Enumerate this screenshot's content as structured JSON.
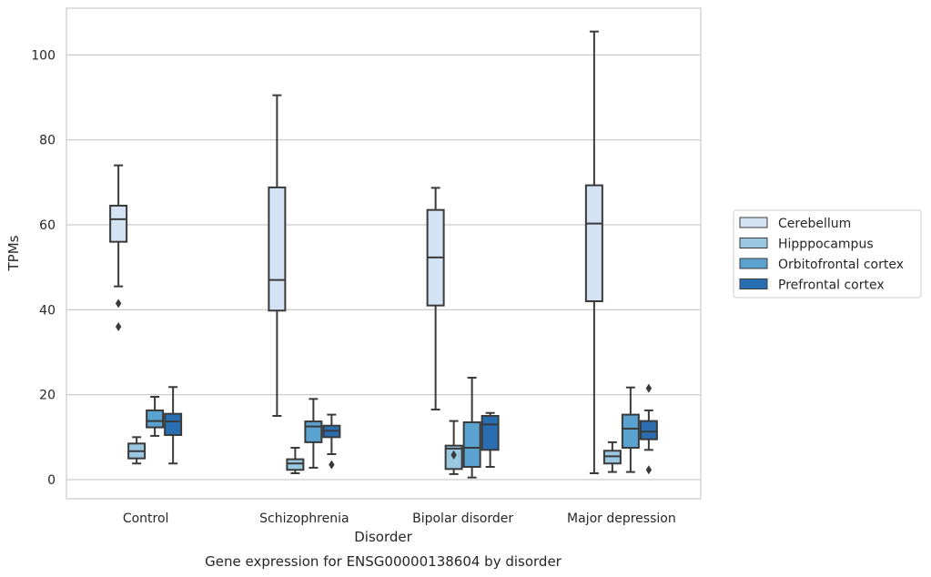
{
  "chart_data": {
    "type": "box",
    "caption": "Gene expression for ENSG00000138604 by disorder",
    "xlabel": "Disorder",
    "ylabel": "TPMs",
    "ylim": [
      -4.5,
      111
    ],
    "yticks": [
      0,
      20,
      40,
      60,
      80,
      100
    ],
    "grid": "horizontal",
    "legend_position": "right",
    "categories": [
      "Control",
      "Schizophrenia",
      "Bipolar disorder",
      "Major depression"
    ],
    "series": [
      {
        "name": "Cerebellum",
        "color": "#d3e3f3",
        "boxes": [
          {
            "whisker_low": 45.5,
            "q1": 56,
            "median": 61.3,
            "q3": 64.5,
            "whisker_high": 74,
            "outliers": [
              41.5,
              36
            ]
          },
          {
            "whisker_low": 15,
            "q1": 39.8,
            "median": 47,
            "q3": 68.8,
            "whisker_high": 90.5,
            "outliers": []
          },
          {
            "whisker_low": 16.5,
            "q1": 41,
            "median": 52.3,
            "q3": 63.5,
            "whisker_high": 68.7,
            "outliers": []
          },
          {
            "whisker_low": 1.5,
            "q1": 42,
            "median": 60.3,
            "q3": 69.3,
            "whisker_high": 105.5,
            "outliers": []
          }
        ]
      },
      {
        "name": "Hipppocampus",
        "color": "#9ac8e0",
        "boxes": [
          {
            "whisker_low": 3.8,
            "q1": 5,
            "median": 6.7,
            "q3": 8.5,
            "whisker_high": 10,
            "outliers": []
          },
          {
            "whisker_low": 1.5,
            "q1": 2.3,
            "median": 3.8,
            "q3": 4.8,
            "whisker_high": 7.5,
            "outliers": []
          },
          {
            "whisker_low": 1.3,
            "q1": 2.5,
            "median": 7.3,
            "q3": 8,
            "whisker_high": 13.8,
            "outliers": [
              5.8
            ]
          },
          {
            "whisker_low": 1.8,
            "q1": 3.8,
            "median": 5.5,
            "q3": 6.8,
            "whisker_high": 8.8,
            "outliers": []
          }
        ]
      },
      {
        "name": "Orbitofrontal cortex",
        "color": "#5aa2cf",
        "boxes": [
          {
            "whisker_low": 10.3,
            "q1": 12.3,
            "median": 13.8,
            "q3": 16.3,
            "whisker_high": 19.5,
            "outliers": []
          },
          {
            "whisker_low": 2.8,
            "q1": 8.8,
            "median": 12.5,
            "q3": 13.7,
            "whisker_high": 19,
            "outliers": []
          },
          {
            "whisker_low": 0.5,
            "q1": 3,
            "median": 7.5,
            "q3": 13.5,
            "whisker_high": 24,
            "outliers": []
          },
          {
            "whisker_low": 1.8,
            "q1": 7.5,
            "median": 12,
            "q3": 15.3,
            "whisker_high": 21.7,
            "outliers": []
          }
        ]
      },
      {
        "name": "Prefrontal cortex",
        "color": "#2a6eb2",
        "boxes": [
          {
            "whisker_low": 3.8,
            "q1": 10.5,
            "median": 13.7,
            "q3": 15.5,
            "whisker_high": 21.8,
            "outliers": []
          },
          {
            "whisker_low": 6,
            "q1": 10,
            "median": 11.5,
            "q3": 12.7,
            "whisker_high": 15.3,
            "outliers": [
              3.5
            ]
          },
          {
            "whisker_low": 3,
            "q1": 7,
            "median": 13,
            "q3": 15,
            "whisker_high": 15.7,
            "outliers": []
          },
          {
            "whisker_low": 7,
            "q1": 9.5,
            "median": 11.3,
            "q3": 13.8,
            "whisker_high": 16.3,
            "outliers": [
              21.5,
              2.3
            ]
          }
        ]
      }
    ]
  }
}
